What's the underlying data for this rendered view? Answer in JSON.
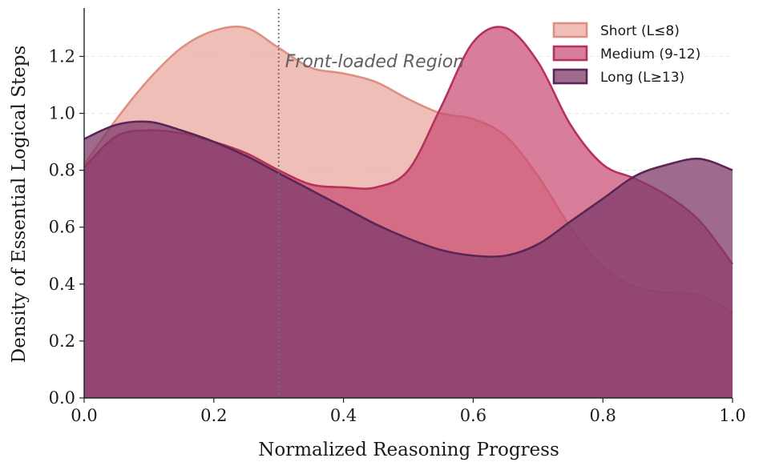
{
  "chart_data": {
    "type": "area",
    "xlabel": "Normalized Reasoning Progress",
    "ylabel": "Density of Essential Logical Steps",
    "xlim": [
      0.0,
      1.0
    ],
    "ylim": [
      0.0,
      1.37
    ],
    "xticks": [
      "0.0",
      "0.2",
      "0.4",
      "0.6",
      "0.8",
      "1.0"
    ],
    "yticks": [
      "0.0",
      "0.2",
      "0.4",
      "0.6",
      "0.8",
      "1.0",
      "1.2"
    ],
    "grid": "horizontal dashed",
    "legend_position": "top-right",
    "annotation": {
      "text": "Front-loaded Region",
      "vline_x": 0.3
    },
    "x": [
      0.0,
      0.05,
      0.1,
      0.15,
      0.2,
      0.25,
      0.3,
      0.35,
      0.4,
      0.45,
      0.5,
      0.55,
      0.6,
      0.65,
      0.7,
      0.75,
      0.8,
      0.85,
      0.9,
      0.95,
      1.0
    ],
    "series": [
      {
        "name": "Short (L≤8)",
        "fill": "#e8a397",
        "stroke": "#de8f84",
        "fill_opacity": 0.7,
        "values": [
          0.82,
          0.98,
          1.12,
          1.23,
          1.29,
          1.3,
          1.23,
          1.16,
          1.14,
          1.11,
          1.05,
          1.0,
          0.98,
          0.92,
          0.78,
          0.6,
          0.46,
          0.39,
          0.37,
          0.36,
          0.3
        ]
      },
      {
        "name": "Medium (9-12)",
        "fill": "#c94c73",
        "stroke": "#b8315e",
        "fill_opacity": 0.72,
        "values": [
          0.81,
          0.92,
          0.94,
          0.93,
          0.9,
          0.86,
          0.8,
          0.75,
          0.74,
          0.74,
          0.8,
          1.02,
          1.25,
          1.3,
          1.18,
          0.96,
          0.82,
          0.77,
          0.71,
          0.62,
          0.47
        ]
      },
      {
        "name": "Long (L≥13)",
        "fill": "#7d3a6a",
        "stroke": "#5b2653",
        "fill_opacity": 0.75,
        "values": [
          0.91,
          0.96,
          0.97,
          0.94,
          0.9,
          0.85,
          0.79,
          0.73,
          0.67,
          0.61,
          0.56,
          0.52,
          0.5,
          0.5,
          0.54,
          0.62,
          0.7,
          0.78,
          0.82,
          0.84,
          0.8
        ]
      }
    ]
  }
}
